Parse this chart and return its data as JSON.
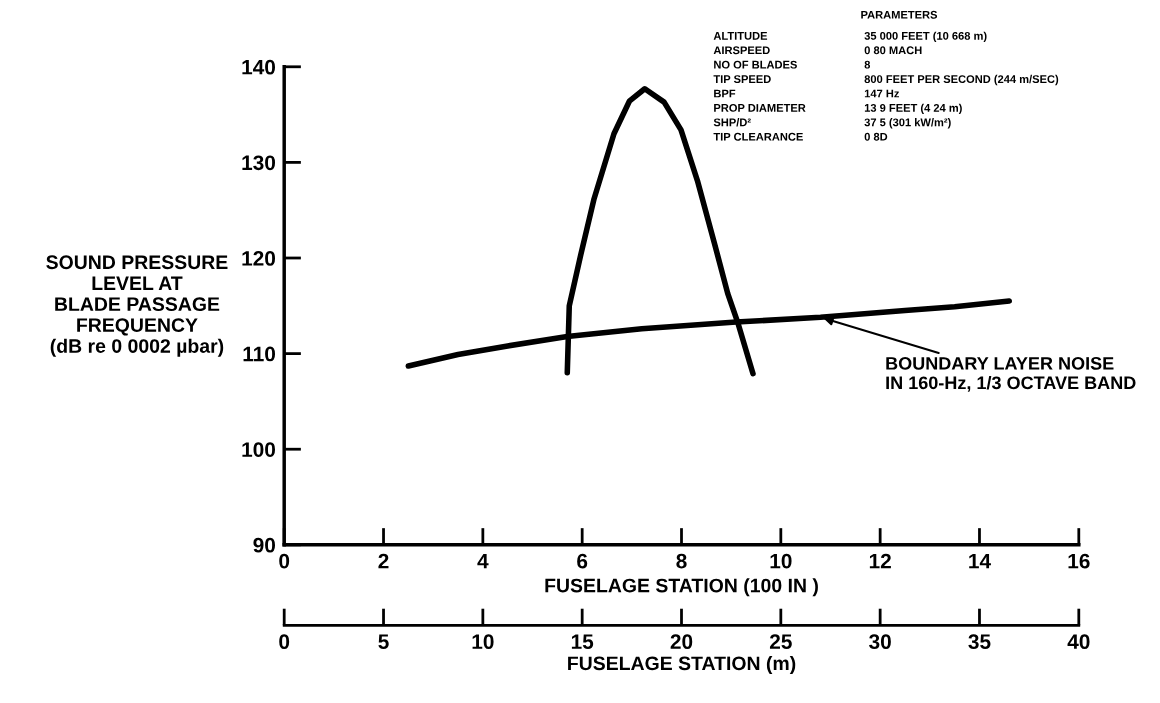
{
  "chart_data": {
    "type": "line",
    "xlabel": "FUSELAGE STATION (100 IN )",
    "x2label": "FUSELAGE STATION (m)",
    "ylabel": "SOUND PRESSURE\nLEVEL AT\nBLADE PASSAGE\nFREQUENCY\n(dB re 0 0002 µbar)",
    "xlim": [
      0,
      16
    ],
    "xticks": [
      0,
      2,
      4,
      6,
      8,
      10,
      12,
      14,
      16
    ],
    "x2lim": [
      0,
      40
    ],
    "x2ticks": [
      0,
      5,
      10,
      15,
      20,
      25,
      30,
      35,
      40
    ],
    "ylim": [
      90,
      140
    ],
    "yticks": [
      90,
      100,
      110,
      120,
      130,
      140
    ],
    "grid": false,
    "legend": false,
    "marker": "none",
    "line_style": "solid",
    "series": [
      {
        "color": "#000000",
        "x": [
          2.5,
          3.5,
          4.5,
          5.7,
          7.2,
          9.1,
          10.8,
          12.5,
          13.5,
          14.6
        ],
        "values": [
          108.7,
          109.9,
          110.8,
          111.8,
          112.6,
          113.3,
          113.8,
          114.5,
          114.9,
          115.5
        ]
      },
      {
        "color": "#000000",
        "x": [
          5.7,
          5.74,
          5.97,
          6.24,
          6.64,
          6.95,
          7.26,
          7.65,
          7.99,
          8.32,
          8.66,
          8.93,
          9.13,
          9.44
        ],
        "values": [
          108.0,
          115.0,
          120.3,
          126.2,
          133.0,
          136.4,
          137.7,
          136.3,
          133.4,
          128.1,
          121.6,
          116.3,
          113.3,
          107.9
        ]
      }
    ],
    "annotations": [
      {
        "text": "BOUNDARY LAYER NOISE\nIN 160-Hz, 1/3 OCTAVE BAND",
        "x": 10.8,
        "y": 113.8
      },
      "PARAMETERS",
      "ALTITUDE",
      "35 000 FEET (10 668 m)",
      "AIRSPEED",
      "0 80 MACH",
      "NO OF BLADES",
      "8",
      "TIP SPEED",
      "800 FEET PER SECOND (244 m/SEC)",
      "BPF",
      "147 Hz",
      "PROP DIAMETER",
      "13 9 FEET (4 24 m)",
      "SHP/D²",
      "37 5 (301 kW/m²)",
      "TIP CLEARANCE",
      "0 8D"
    ]
  }
}
